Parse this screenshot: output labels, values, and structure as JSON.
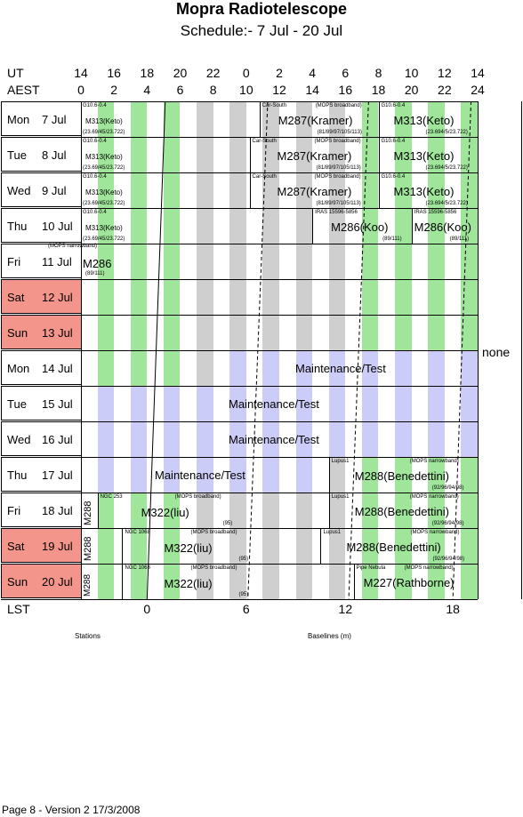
{
  "header": {
    "title": "Mopra Radiotelescope",
    "subtitle": "Schedule:- 7  Jul - 20 Jul"
  },
  "axis": {
    "ut_label": "UT",
    "aest_label": "AEST",
    "ut_ticks": [
      "14",
      "16",
      "18",
      "20",
      "22",
      "0",
      "2",
      "4",
      "6",
      "8",
      "10",
      "12",
      "14"
    ],
    "aest_ticks": [
      "0",
      "2",
      "4",
      "6",
      "8",
      "10",
      "12",
      "14",
      "16",
      "18",
      "20",
      "22",
      "24"
    ],
    "lst_label": "LST",
    "lst_ticks": [
      "0",
      "6",
      "12",
      "18"
    ]
  },
  "days": [
    {
      "dow": "Mon",
      "date": "7  Jul",
      "weekend": false
    },
    {
      "dow": "Tue",
      "date": "8  Jul",
      "weekend": false
    },
    {
      "dow": "Wed",
      "date": "9  Jul",
      "weekend": false
    },
    {
      "dow": "Thu",
      "date": "10 Jul",
      "weekend": false
    },
    {
      "dow": "Fri",
      "date": "11 Jul",
      "weekend": false
    },
    {
      "dow": "Sat",
      "date": "12 Jul",
      "weekend": true
    },
    {
      "dow": "Sun",
      "date": "13 Jul",
      "weekend": true
    },
    {
      "dow": "Mon",
      "date": "14 Jul",
      "weekend": false
    },
    {
      "dow": "Tue",
      "date": "15 Jul",
      "weekend": false
    },
    {
      "dow": "Wed",
      "date": "16 Jul",
      "weekend": false
    },
    {
      "dow": "Thu",
      "date": "17 Jul",
      "weekend": false
    },
    {
      "dow": "Fri",
      "date": "18 Jul",
      "weekend": false
    },
    {
      "dow": "Sat",
      "date": "19 Jul",
      "weekend": true
    },
    {
      "dow": "Sun",
      "date": "20 Jul",
      "weekend": true
    }
  ],
  "labels": {
    "g10_src": "G10.6-0.4",
    "m313_keto": "M313(Keto)",
    "g10_base": "(23.69/45/23.722)",
    "car_south": "Car-South",
    "mops_broadband": "(MOPS broadband)",
    "m287_kramer": "M287(Kramer)",
    "m287_base": "(81/89/97/105/113)",
    "m313_base": "(23.694/5/23.722)",
    "iras": "IRAS 15596-5856",
    "m286_koo": "M286(Koo)",
    "m286_base": "(89/111)",
    "mops_narrowband": "(MOPS narrowband)",
    "m286": "M286",
    "maintenance": "Maintenance/Test",
    "none": "none",
    "lupus1": "Lupus1",
    "m288_benedettini": "M288(Benedettini)",
    "m288_base": "(92/96/94/98)",
    "m288": "M288",
    "ngc253": "NGC 253",
    "m322_liu": "M322(liu)",
    "m322_base": "(95)",
    "ngc1068": "NGC 1068",
    "pipe_nebula": "Pipe Nebula",
    "m227_rathborne": "M227(Rathborne)"
  },
  "footer": {
    "stations": "Stations",
    "baselines": "Baselines (m)",
    "page_info": "Page 8 - Version 2  17/3/2008"
  },
  "colors": {
    "green": "#9fe59a",
    "grey": "#cfcfcf",
    "lavender": "#ccccf8",
    "weekend": "#f4958b"
  }
}
